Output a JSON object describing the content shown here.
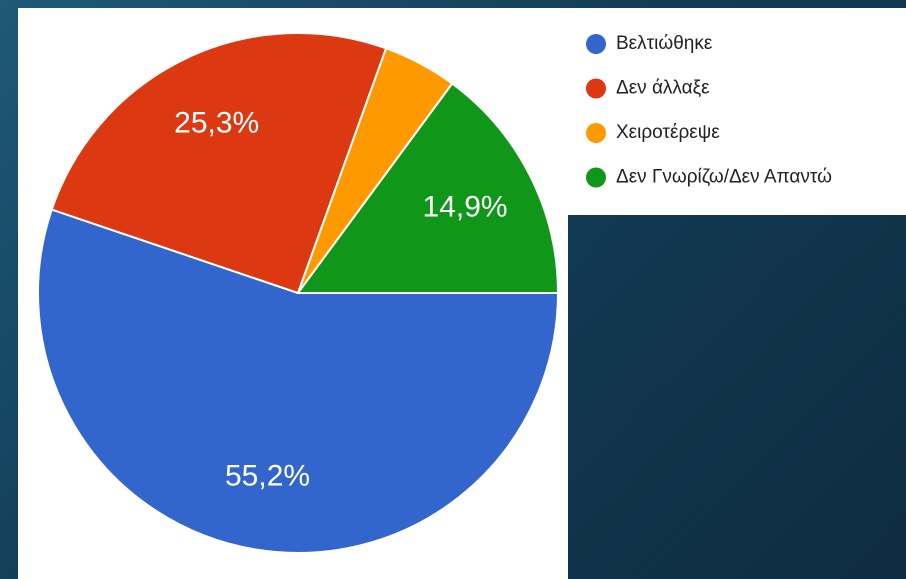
{
  "chart_data": {
    "type": "pie",
    "categories": [
      "Βελτιώθηκε",
      "Δεν άλλαξε",
      "Χειροτέρεψε",
      "Δεν Γνωρίζω/Δεν Απαντώ"
    ],
    "values": [
      55.2,
      25.3,
      4.6,
      14.9
    ],
    "value_labels": [
      "55,2%",
      "25,3%",
      null,
      "14,9%"
    ],
    "colors": [
      "#3366cc",
      "#dc3912",
      "#ff9900",
      "#109618"
    ]
  }
}
